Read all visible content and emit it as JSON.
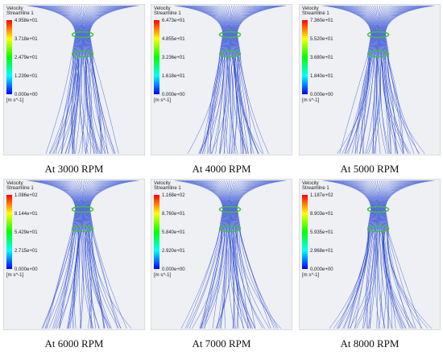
{
  "panels": [
    {
      "caption": "At 3000 RPM",
      "legend": {
        "title": "Velocity",
        "subtitle": "Streamline 1",
        "ticks": [
          "4.958e+01",
          "3.718e+01",
          "2.479e+01",
          "1.239e+01",
          "0.000e+00"
        ],
        "unit": "[m s^-1]"
      }
    },
    {
      "caption": "At 4000 RPM",
      "legend": {
        "title": "Velocity",
        "subtitle": "Streamline 1",
        "ticks": [
          "6.473e+01",
          "4.855e+01",
          "3.236e+01",
          "1.618e+01",
          "0.000e+00"
        ],
        "unit": "[m s^-1]"
      }
    },
    {
      "caption": "At 5000 RPM",
      "legend": {
        "title": "Velocity",
        "subtitle": "Streamline 1",
        "ticks": [
          "7.360e+01",
          "5.520e+01",
          "3.680e+01",
          "1.840e+01",
          "0.000e+00"
        ],
        "unit": "[m s^-1]"
      }
    },
    {
      "caption": "At 6000 RPM",
      "legend": {
        "title": "Velocity",
        "subtitle": "Streamline 1",
        "ticks": [
          "1.086e+02",
          "8.144e+01",
          "5.429e+01",
          "2.715e+01",
          "0.000e+00"
        ],
        "unit": "[m s^-1]"
      }
    },
    {
      "caption": "At 7000 RPM",
      "legend": {
        "title": "Velocity",
        "subtitle": "Streamline 1",
        "ticks": [
          "1.168e+02",
          "8.760e+01",
          "5.840e+01",
          "2.920e+01",
          "0.000e+00"
        ],
        "unit": "[m s^-1]"
      }
    },
    {
      "caption": "At 8000 RPM",
      "legend": {
        "title": "Velocity",
        "subtitle": "Streamline 1",
        "ticks": [
          "1.187e+02",
          "8.903e+01",
          "5.935e+01",
          "2.968e+01",
          "0.000e+00"
        ],
        "unit": "[m s^-1]"
      }
    }
  ]
}
